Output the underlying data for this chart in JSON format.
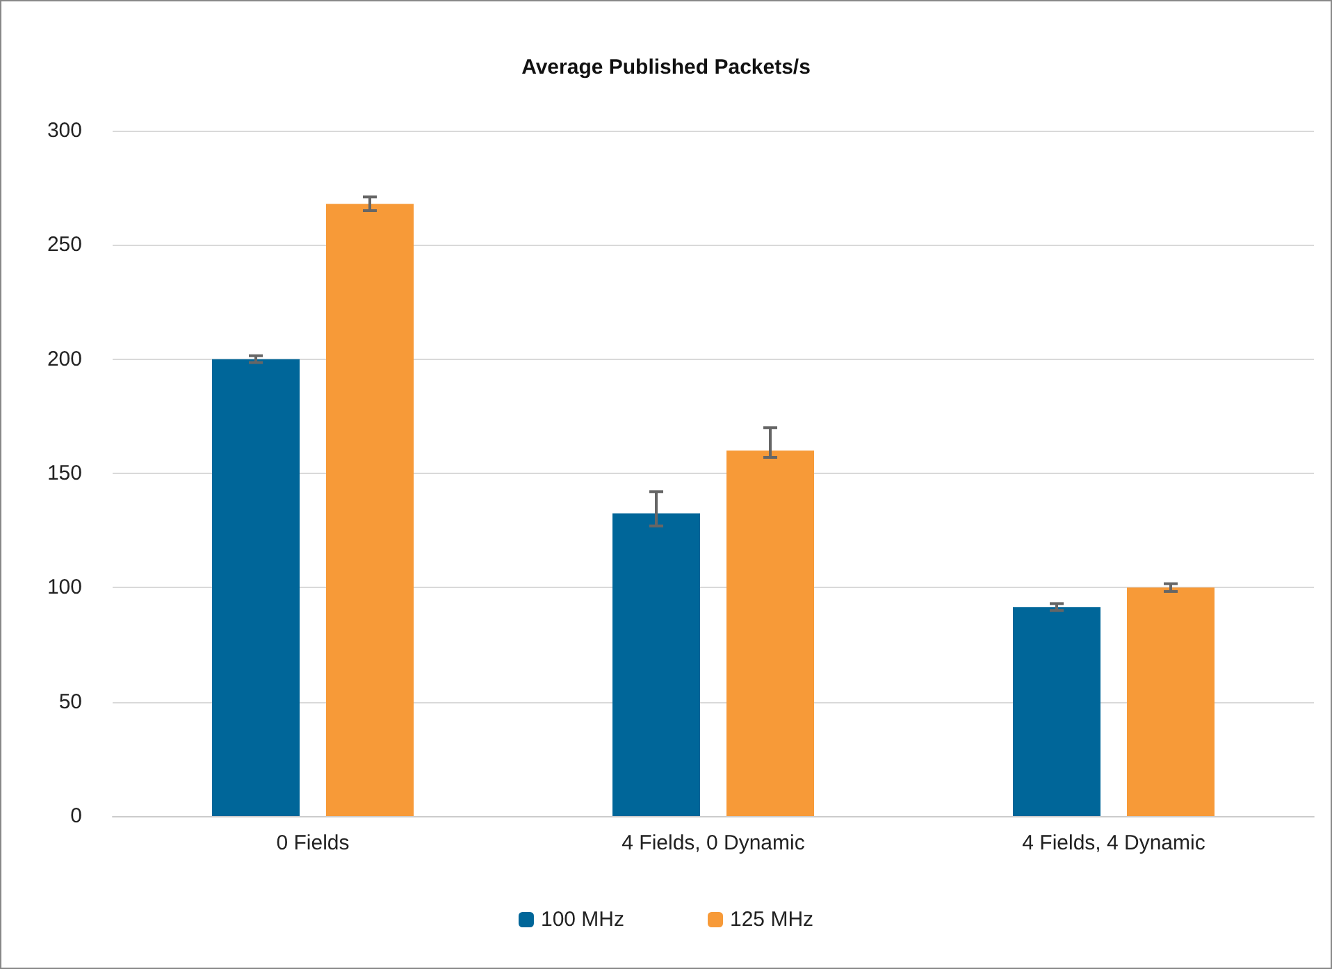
{
  "chart_data": {
    "type": "bar",
    "title": "Average Published Packets/s",
    "categories": [
      "0 Fields",
      "4 Fields, 0 Dynamic",
      "4 Fields, 4 Dynamic"
    ],
    "series": [
      {
        "name": "100 MHz",
        "color": "#006699",
        "values": [
          200,
          132.5,
          91.5
        ],
        "errors": [
          1.5,
          [
            127,
            142
          ],
          1.5
        ]
      },
      {
        "name": "125 MHz",
        "color": "#f79a38",
        "values": [
          268,
          160,
          100
        ],
        "errors": [
          3,
          [
            157,
            170
          ],
          1.7
        ]
      }
    ],
    "ylim": [
      0,
      300
    ],
    "yticks": [
      0,
      50,
      100,
      150,
      200,
      250,
      300
    ],
    "grid": "y",
    "legend": "bottom"
  }
}
